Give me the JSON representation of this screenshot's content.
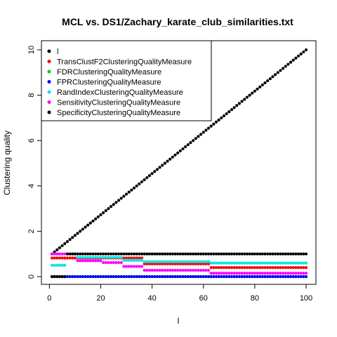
{
  "chart_data": {
    "type": "scatter",
    "title": "MCL vs. DS1/Zachary_karate_club_similarities.txt",
    "xlabel": "l",
    "ylabel": "Clustering quality",
    "xlim": [
      1,
      100
    ],
    "ylim": [
      0,
      10
    ],
    "xticks": [
      0,
      20,
      40,
      60,
      80,
      100
    ],
    "yticks": [
      0,
      2,
      4,
      6,
      8,
      10
    ],
    "xtick_labels": [
      "0",
      "20",
      "40",
      "60",
      "80",
      "100"
    ],
    "ytick_labels": [
      "0",
      "2",
      "4",
      "6",
      "8",
      "10"
    ],
    "grid": false,
    "legend": "top-left",
    "x_start": 1,
    "x_end": 100,
    "x_count": 100,
    "series": [
      {
        "name": "l",
        "color": "#000000",
        "segments": [
          {
            "from": 1,
            "to": 100,
            "y0": 1.0,
            "y1": 10.0
          }
        ]
      },
      {
        "name": "TransClustF2ClusteringQualityMeasure",
        "color": "#ff0000",
        "segments": [
          {
            "from": 1,
            "to": 6,
            "value": 0.82
          },
          {
            "from": 7,
            "to": 36,
            "value": 0.82
          },
          {
            "from": 37,
            "to": 62,
            "value": 0.56
          },
          {
            "from": 63,
            "to": 100,
            "value": 0.4
          }
        ]
      },
      {
        "name": "FDRClusteringQualityMeasure",
        "color": "#00cd00",
        "segments": [
          {
            "from": 1,
            "to": 100,
            "value": 0.0
          }
        ]
      },
      {
        "name": "FPRClusteringQualityMeasure",
        "color": "#0000ff",
        "segments": [
          {
            "from": 1,
            "to": 100,
            "value": 0.0
          }
        ]
      },
      {
        "name": "RandIndexClusteringQualityMeasure",
        "color": "#00e5e5",
        "segments": [
          {
            "from": 1,
            "to": 6,
            "value": 0.5
          },
          {
            "from": 7,
            "to": 10,
            "value": 1.0
          },
          {
            "from": 11,
            "to": 28,
            "value": 0.85
          },
          {
            "from": 29,
            "to": 36,
            "value": 0.72
          },
          {
            "from": 37,
            "to": 62,
            "value": 0.66
          },
          {
            "from": 63,
            "to": 100,
            "value": 0.6
          }
        ]
      },
      {
        "name": "SensitivityClusteringQualityMeasure",
        "color": "#ff00ff",
        "segments": [
          {
            "from": 1,
            "to": 6,
            "value": 1.0
          },
          {
            "from": 7,
            "to": 10,
            "value": 1.0
          },
          {
            "from": 11,
            "to": 20,
            "value": 0.7
          },
          {
            "from": 21,
            "to": 28,
            "value": 0.62
          },
          {
            "from": 29,
            "to": 36,
            "value": 0.45
          },
          {
            "from": 37,
            "to": 62,
            "value": 0.28
          },
          {
            "from": 63,
            "to": 100,
            "value": 0.15
          }
        ]
      },
      {
        "name": "SpecificityClusteringQualityMeasure",
        "color": "#000000",
        "segments": [
          {
            "from": 1,
            "to": 6,
            "value": 0.0
          },
          {
            "from": 7,
            "to": 100,
            "value": 1.0
          }
        ]
      }
    ]
  }
}
